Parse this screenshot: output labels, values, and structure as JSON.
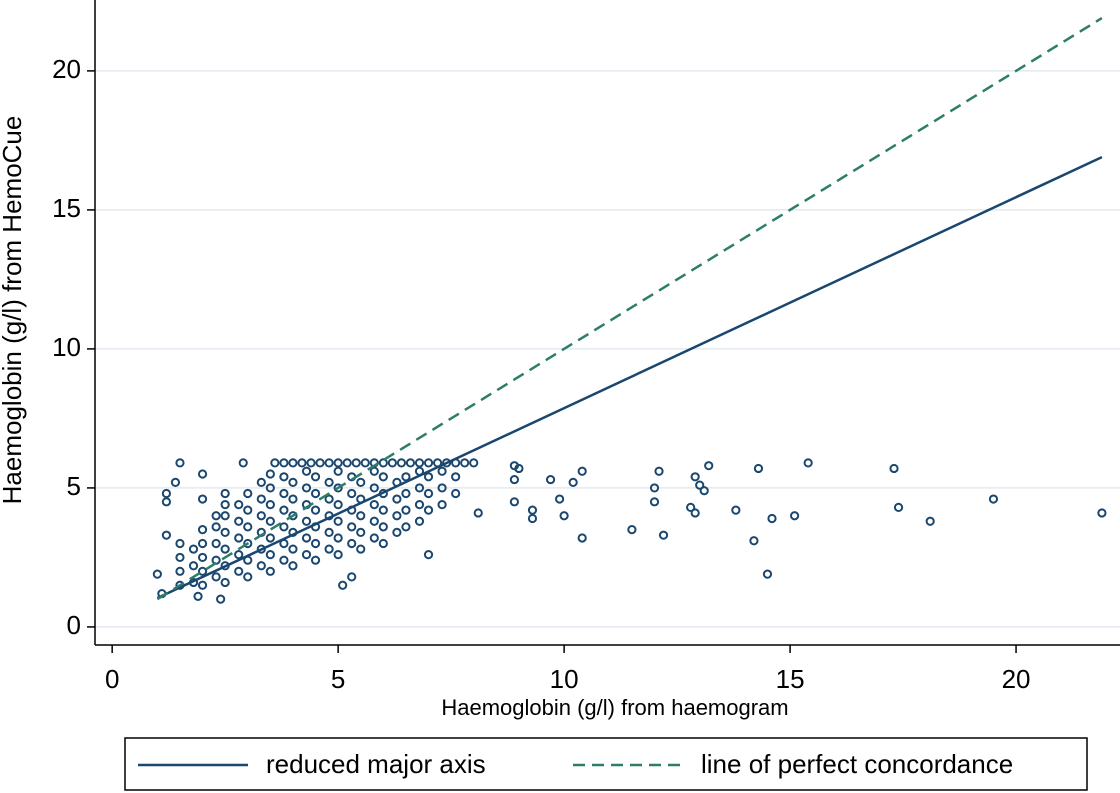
{
  "chart_data": {
    "type": "scatter",
    "x_label": "Haemoglobin (g/l) from haemogram",
    "y_label": "Haemoglobin (g/l) from HemoCue",
    "color": "#1a476f",
    "x": [
      1.0,
      1.1,
      1.2,
      1.5,
      1.2,
      1.2,
      1.4,
      2.0,
      2.0,
      2.9,
      2.5,
      1.9,
      2.4,
      5.1,
      5.3,
      7.0,
      8.0,
      8.1,
      8.9,
      9.0,
      8.9,
      8.9,
      9.3,
      9.3,
      9.7,
      9.9,
      10.0,
      10.2,
      10.4,
      10.4,
      11.5,
      12.0,
      12.0,
      12.1,
      12.2,
      12.8,
      12.9,
      13.0,
      13.1,
      13.2,
      12.9,
      13.8,
      14.2,
      14.3,
      14.5,
      14.6,
      15.1,
      15.4,
      17.3,
      17.4,
      18.1,
      19.5,
      21.9,
      3.6,
      3.8,
      4.0,
      4.2,
      4.4,
      4.6,
      4.8,
      5.0,
      5.2,
      5.4,
      5.6,
      5.8,
      6.0,
      6.2,
      6.4,
      6.6,
      6.8,
      7.0,
      7.2,
      7.4,
      7.6,
      7.8,
      1.5,
      1.5,
      1.5,
      1.5,
      1.8,
      1.8,
      1.8,
      2.0,
      2.0,
      2.0,
      2.0,
      2.0,
      2.3,
      2.3,
      2.3,
      2.3,
      2.3,
      2.5,
      2.5,
      2.5,
      2.5,
      2.5,
      2.5,
      2.8,
      2.8,
      2.8,
      2.8,
      2.8,
      3.0,
      3.0,
      3.0,
      3.0,
      3.0,
      3.0,
      3.3,
      3.3,
      3.3,
      3.3,
      3.3,
      3.3,
      3.5,
      3.5,
      3.5,
      3.5,
      3.5,
      3.5,
      3.5,
      3.8,
      3.8,
      3.8,
      3.8,
      3.8,
      3.8,
      4.0,
      4.0,
      4.0,
      4.0,
      4.0,
      4.0,
      4.3,
      4.3,
      4.3,
      4.3,
      4.3,
      4.3,
      4.5,
      4.5,
      4.5,
      4.5,
      4.5,
      4.5,
      4.8,
      4.8,
      4.8,
      4.8,
      4.8,
      5.0,
      5.0,
      5.0,
      5.0,
      5.0,
      5.0,
      5.3,
      5.3,
      5.3,
      5.3,
      5.3,
      5.5,
      5.5,
      5.5,
      5.5,
      5.5,
      5.8,
      5.8,
      5.8,
      5.8,
      5.8,
      6.0,
      6.0,
      6.0,
      6.0,
      6.0,
      6.3,
      6.3,
      6.3,
      6.3,
      6.5,
      6.5,
      6.5,
      6.5,
      6.8,
      6.8,
      6.8,
      6.8,
      7.0,
      7.0,
      7.0,
      7.3,
      7.3,
      7.3,
      7.6,
      7.6
    ],
    "values": [
      1.9,
      1.2,
      3.3,
      5.9,
      4.8,
      4.5,
      5.2,
      5.5,
      4.6,
      5.9,
      4.8,
      1.1,
      1.0,
      1.5,
      1.8,
      2.6,
      5.9,
      4.1,
      5.8,
      5.7,
      5.3,
      4.5,
      4.2,
      3.9,
      5.3,
      4.6,
      4.0,
      5.2,
      5.6,
      3.2,
      3.5,
      5.0,
      4.5,
      5.6,
      3.3,
      4.3,
      5.4,
      5.1,
      4.9,
      5.8,
      4.1,
      4.2,
      3.1,
      5.7,
      1.9,
      3.9,
      4.0,
      5.9,
      5.7,
      4.3,
      3.8,
      4.6,
      4.1,
      5.9,
      5.9,
      5.9,
      5.9,
      5.9,
      5.9,
      5.9,
      5.9,
      5.9,
      5.9,
      5.9,
      5.9,
      5.9,
      5.9,
      5.9,
      5.9,
      5.9,
      5.9,
      5.9,
      5.9,
      5.9,
      5.9,
      1.5,
      2.0,
      2.5,
      3.0,
      1.6,
      2.2,
      2.8,
      1.5,
      2.0,
      2.5,
      3.0,
      3.5,
      1.8,
      2.4,
      3.0,
      3.6,
      4.0,
      1.6,
      2.2,
      2.8,
      3.4,
      4.0,
      4.4,
      2.0,
      2.6,
      3.2,
      3.8,
      4.4,
      1.8,
      2.4,
      3.0,
      3.6,
      4.2,
      4.8,
      2.2,
      2.8,
      3.4,
      4.0,
      4.6,
      5.2,
      2.0,
      2.6,
      3.2,
      3.8,
      4.4,
      5.0,
      5.5,
      2.4,
      3.0,
      3.6,
      4.2,
      4.8,
      5.4,
      2.2,
      2.8,
      3.4,
      4.0,
      4.6,
      5.2,
      2.6,
      3.2,
      3.8,
      4.4,
      5.0,
      5.6,
      2.4,
      3.0,
      3.6,
      4.2,
      4.8,
      5.4,
      2.8,
      3.4,
      4.0,
      4.6,
      5.2,
      2.6,
      3.2,
      3.8,
      4.4,
      5.0,
      5.6,
      3.0,
      3.6,
      4.2,
      4.8,
      5.4,
      2.8,
      3.4,
      4.0,
      4.6,
      5.2,
      3.2,
      3.8,
      4.4,
      5.0,
      5.6,
      3.0,
      3.6,
      4.2,
      4.8,
      5.4,
      3.4,
      4.0,
      4.6,
      5.2,
      3.6,
      4.2,
      4.8,
      5.4,
      3.8,
      4.4,
      5.0,
      5.6,
      4.2,
      4.8,
      5.4,
      4.4,
      5.0,
      5.6,
      4.8,
      5.4
    ],
    "lines": [
      {
        "name": "reduced major axis",
        "color": "#1a476f",
        "dashed": false,
        "x": [
          1.0,
          21.9
        ],
        "values": [
          1.04,
          16.9
        ]
      },
      {
        "name": "line of perfect concordance",
        "color": "#2e7d6b",
        "dashed": true,
        "x": [
          1.0,
          21.9
        ],
        "values": [
          1.0,
          21.9
        ]
      }
    ],
    "xlim": [
      -0.38,
      22.3
    ],
    "ylim": [
      -0.65,
      22.55
    ],
    "xticks": [
      0,
      5,
      10,
      15,
      20
    ],
    "yticks": [
      0,
      5,
      10,
      15,
      20
    ],
    "grid": true
  }
}
